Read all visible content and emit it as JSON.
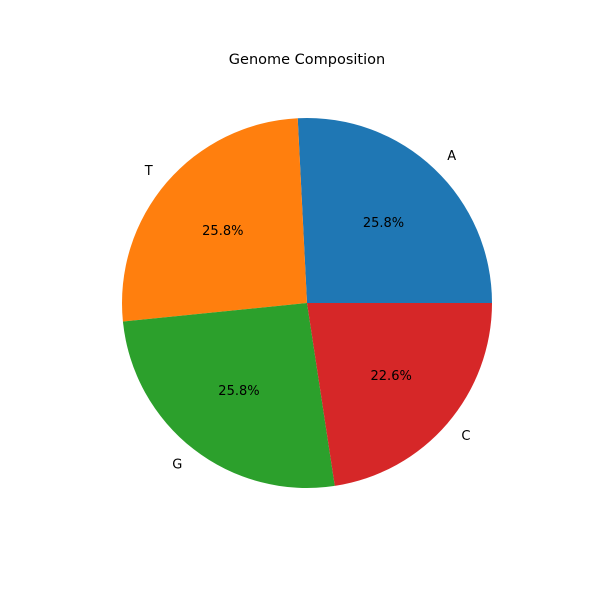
{
  "chart_data": {
    "type": "pie",
    "title": "Genome Composition",
    "categories": [
      "A",
      "T",
      "G",
      "C"
    ],
    "values": [
      25.8,
      25.8,
      25.8,
      22.6
    ],
    "percent_labels": [
      "25.8%",
      "25.8%",
      "25.8%",
      "22.6%"
    ],
    "colors": [
      "#1f77b4",
      "#ff7f0e",
      "#2ca02c",
      "#d62728"
    ],
    "start_angle_deg": 0,
    "direction": "counterclockwise",
    "legend": "none"
  }
}
